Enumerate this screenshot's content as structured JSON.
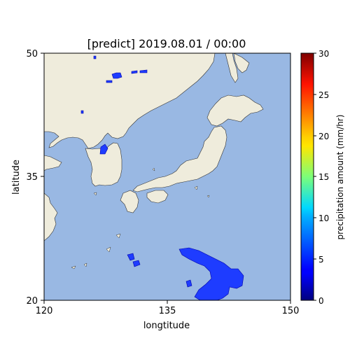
{
  "title": "[predict] 2019.08.01 / 00:00",
  "map": {
    "xlabel": "longtitude",
    "ylabel": "latitude",
    "xlim": [
      120,
      150
    ],
    "ylim": [
      20,
      50
    ],
    "xticks": [
      "120",
      "135",
      "150"
    ],
    "yticks": [
      "20",
      "35",
      "50"
    ],
    "ocean_color": "#99b8e3",
    "land_color": "#efecdc"
  },
  "colorbar": {
    "label": "precipitation amount (mm/hr)",
    "range": [
      0,
      30
    ],
    "ticks": [
      "0",
      "5",
      "10",
      "15",
      "20",
      "25",
      "30"
    ],
    "colormap": "jet"
  }
}
